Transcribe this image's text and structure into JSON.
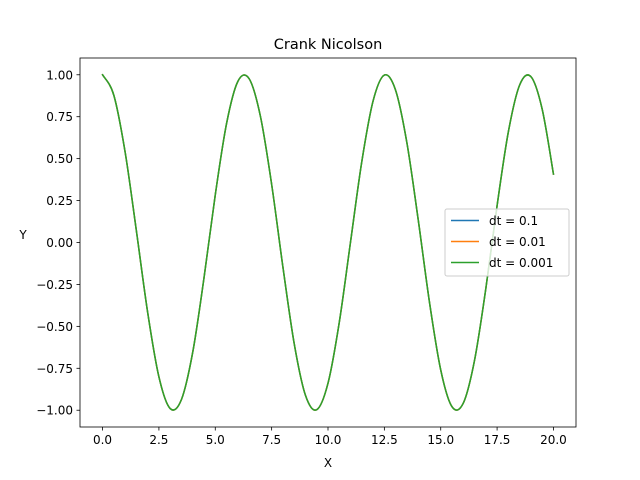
{
  "chart_data": {
    "type": "line",
    "title": "Crank Nicolson",
    "xlabel": "X",
    "ylabel": "Y",
    "xlim": [
      -1.0,
      21.0
    ],
    "ylim": [
      -1.1,
      1.1
    ],
    "xticks": [
      0.0,
      2.5,
      5.0,
      7.5,
      10.0,
      12.5,
      15.0,
      17.5,
      20.0
    ],
    "xtick_labels": [
      "0.0",
      "2.5",
      "5.0",
      "7.5",
      "10.0",
      "12.5",
      "15.0",
      "17.5",
      "20.0"
    ],
    "yticks": [
      1.0,
      0.75,
      0.5,
      0.25,
      0.0,
      -0.25,
      -0.5,
      -0.75,
      -1.0
    ],
    "ytick_labels": [
      "1.00",
      "0.75",
      "0.50",
      "0.25",
      "0.00",
      "−0.25",
      "−0.50",
      "−0.75",
      "−1.00"
    ],
    "grid": false,
    "legend_position": "center-right",
    "series": [
      {
        "name": "dt = 0.1",
        "color": "#1f77b4",
        "x": [
          0,
          0.5,
          1,
          1.5,
          2,
          2.5,
          3,
          3.5,
          4,
          4.5,
          5,
          5.5,
          6,
          6.5,
          7,
          7.5,
          8,
          8.5,
          9,
          9.5,
          10,
          10.5,
          11,
          11.5,
          12,
          12.5,
          13,
          13.5,
          14,
          14.5,
          15,
          15.5,
          16,
          16.5,
          17,
          17.5,
          18,
          18.5,
          19,
          19.5,
          20
        ],
        "y": [
          1.0,
          0.878,
          0.54,
          0.071,
          -0.416,
          -0.801,
          -0.99,
          -0.936,
          -0.654,
          -0.211,
          0.284,
          0.709,
          0.96,
          0.977,
          0.754,
          0.347,
          -0.146,
          -0.602,
          -0.911,
          -0.997,
          -0.839,
          -0.476,
          0.004,
          0.483,
          0.844,
          0.998,
          0.907,
          0.594,
          0.137,
          -0.355,
          -0.76,
          -0.979,
          -0.958,
          -0.702,
          -0.275,
          0.22,
          0.66,
          0.939,
          0.989,
          0.795,
          0.408
        ]
      },
      {
        "name": "dt = 0.01",
        "color": "#ff7f0e",
        "x": [
          0,
          0.5,
          1,
          1.5,
          2,
          2.5,
          3,
          3.5,
          4,
          4.5,
          5,
          5.5,
          6,
          6.5,
          7,
          7.5,
          8,
          8.5,
          9,
          9.5,
          10,
          10.5,
          11,
          11.5,
          12,
          12.5,
          13,
          13.5,
          14,
          14.5,
          15,
          15.5,
          16,
          16.5,
          17,
          17.5,
          18,
          18.5,
          19,
          19.5,
          20
        ],
        "y": [
          1.0,
          0.878,
          0.54,
          0.071,
          -0.416,
          -0.801,
          -0.99,
          -0.936,
          -0.654,
          -0.211,
          0.284,
          0.709,
          0.96,
          0.977,
          0.754,
          0.347,
          -0.146,
          -0.602,
          -0.911,
          -0.997,
          -0.839,
          -0.476,
          0.004,
          0.483,
          0.844,
          0.998,
          0.907,
          0.594,
          0.137,
          -0.355,
          -0.76,
          -0.979,
          -0.958,
          -0.702,
          -0.275,
          0.22,
          0.66,
          0.939,
          0.989,
          0.795,
          0.408
        ]
      },
      {
        "name": "dt = 0.001",
        "color": "#2ca02c",
        "x": [
          0,
          0.5,
          1,
          1.5,
          2,
          2.5,
          3,
          3.5,
          4,
          4.5,
          5,
          5.5,
          6,
          6.5,
          7,
          7.5,
          8,
          8.5,
          9,
          9.5,
          10,
          10.5,
          11,
          11.5,
          12,
          12.5,
          13,
          13.5,
          14,
          14.5,
          15,
          15.5,
          16,
          16.5,
          17,
          17.5,
          18,
          18.5,
          19,
          19.5,
          20
        ],
        "y": [
          1.0,
          0.878,
          0.54,
          0.071,
          -0.416,
          -0.801,
          -0.99,
          -0.936,
          -0.654,
          -0.211,
          0.284,
          0.709,
          0.96,
          0.977,
          0.754,
          0.347,
          -0.146,
          -0.602,
          -0.911,
          -0.997,
          -0.839,
          -0.476,
          0.004,
          0.483,
          0.844,
          0.998,
          0.907,
          0.594,
          0.137,
          -0.355,
          -0.76,
          -0.979,
          -0.958,
          -0.702,
          -0.275,
          0.22,
          0.66,
          0.939,
          0.989,
          0.795,
          0.408
        ]
      }
    ]
  }
}
